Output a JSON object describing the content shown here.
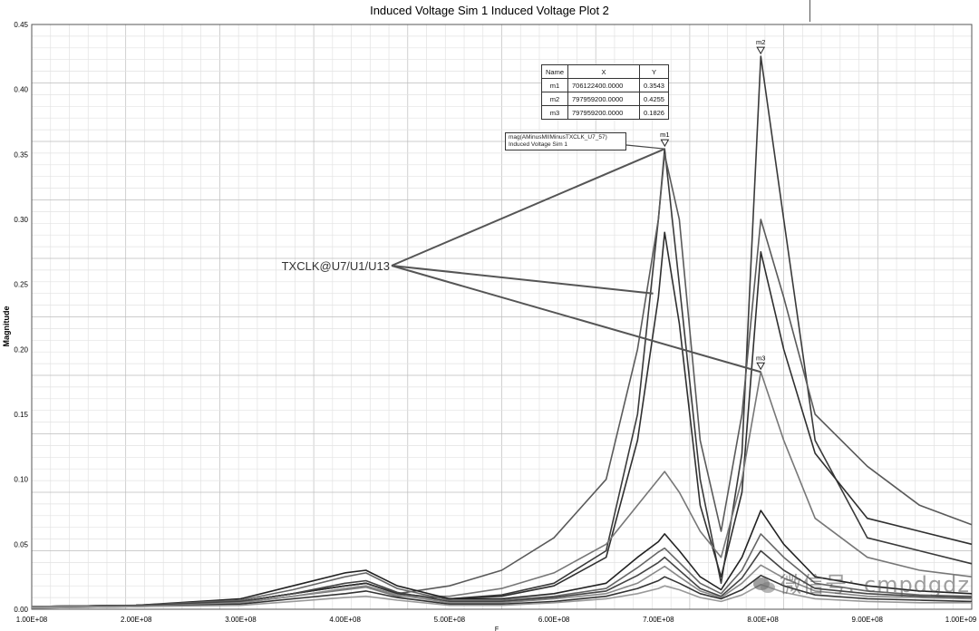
{
  "chart_data": {
    "type": "line",
    "title": "Induced Voltage Sim 1 Induced Voltage Plot 2",
    "xlabel": "F",
    "ylabel": "Magnitude",
    "xlim": [
      100000000,
      1000000000
    ],
    "ylim": [
      0,
      0.45
    ],
    "x_ticks": [
      100000000,
      200000000,
      300000000,
      400000000,
      500000000,
      600000000,
      700000000,
      800000000,
      900000000,
      1000000000
    ],
    "x_tick_labels": [
      "1.00E+08",
      "2.00E+08",
      "3.00E+08",
      "4.00E+08",
      "5.00E+08",
      "6.00E+08",
      "7.00E+08",
      "8.00E+08",
      "9.00E+08",
      "1.00E+09"
    ],
    "y_ticks": [
      0,
      0.05,
      0.1,
      0.15,
      0.2,
      0.25,
      0.3,
      0.35,
      0.4,
      0.45
    ],
    "y_tick_labels": [
      "0.00",
      "0.05",
      "0.10",
      "0.15",
      "0.20",
      "0.25",
      "0.30",
      "0.35",
      "0.40",
      "0.45"
    ],
    "grid": true,
    "x": [
      100000000,
      200000000,
      300000000,
      350000000,
      400000000,
      420000000,
      450000000,
      500000000,
      550000000,
      600000000,
      650000000,
      680000000,
      700000000,
      706000000,
      720000000,
      740000000,
      760000000,
      780000000,
      798000000,
      820000000,
      850000000,
      900000000,
      950000000,
      1000000000
    ],
    "series": [
      {
        "values": [
          0.002,
          0.003,
          0.006,
          0.012,
          0.018,
          0.02,
          0.012,
          0.008,
          0.011,
          0.02,
          0.045,
          0.15,
          0.3,
          0.3543,
          0.25,
          0.1,
          0.02,
          0.12,
          0.4255,
          0.3,
          0.13,
          0.055,
          0.045,
          0.035
        ],
        "color": "#3a3a3a"
      },
      {
        "values": [
          0.002,
          0.003,
          0.006,
          0.012,
          0.018,
          0.02,
          0.012,
          0.018,
          0.03,
          0.055,
          0.1,
          0.2,
          0.3,
          0.35,
          0.3,
          0.13,
          0.06,
          0.15,
          0.3,
          0.24,
          0.15,
          0.11,
          0.08,
          0.065
        ],
        "color": "#5a5a5a"
      },
      {
        "values": [
          0.002,
          0.003,
          0.006,
          0.012,
          0.018,
          0.02,
          0.012,
          0.008,
          0.01,
          0.018,
          0.04,
          0.13,
          0.24,
          0.29,
          0.22,
          0.08,
          0.025,
          0.09,
          0.275,
          0.2,
          0.12,
          0.07,
          0.06,
          0.05
        ],
        "color": "#2f2f2f"
      },
      {
        "values": [
          0.002,
          0.003,
          0.005,
          0.01,
          0.015,
          0.017,
          0.01,
          0.01,
          0.016,
          0.028,
          0.05,
          0.08,
          0.1,
          0.106,
          0.09,
          0.06,
          0.04,
          0.1,
          0.1826,
          0.13,
          0.07,
          0.04,
          0.03,
          0.025
        ],
        "color": "#777777"
      },
      {
        "values": [
          0.002,
          0.003,
          0.008,
          0.018,
          0.028,
          0.03,
          0.018,
          0.008,
          0.008,
          0.012,
          0.02,
          0.04,
          0.052,
          0.058,
          0.045,
          0.025,
          0.015,
          0.04,
          0.076,
          0.05,
          0.025,
          0.018,
          0.014,
          0.012
        ],
        "color": "#222222"
      },
      {
        "values": [
          0.002,
          0.003,
          0.007,
          0.015,
          0.025,
          0.028,
          0.016,
          0.007,
          0.007,
          0.01,
          0.016,
          0.032,
          0.044,
          0.047,
          0.036,
          0.02,
          0.012,
          0.03,
          0.058,
          0.04,
          0.02,
          0.014,
          0.011,
          0.01
        ],
        "color": "#666666"
      },
      {
        "values": [
          0.002,
          0.003,
          0.006,
          0.012,
          0.02,
          0.022,
          0.013,
          0.006,
          0.006,
          0.009,
          0.014,
          0.026,
          0.036,
          0.04,
          0.03,
          0.016,
          0.01,
          0.024,
          0.045,
          0.03,
          0.016,
          0.012,
          0.01,
          0.009
        ],
        "color": "#444444"
      },
      {
        "values": [
          0.002,
          0.002,
          0.005,
          0.01,
          0.016,
          0.018,
          0.011,
          0.005,
          0.005,
          0.008,
          0.012,
          0.02,
          0.03,
          0.033,
          0.025,
          0.014,
          0.009,
          0.02,
          0.034,
          0.024,
          0.014,
          0.01,
          0.009,
          0.008
        ],
        "color": "#888888"
      },
      {
        "values": [
          0.001,
          0.002,
          0.004,
          0.008,
          0.012,
          0.014,
          0.009,
          0.004,
          0.004,
          0.006,
          0.01,
          0.016,
          0.022,
          0.025,
          0.02,
          0.012,
          0.008,
          0.015,
          0.026,
          0.018,
          0.011,
          0.008,
          0.007,
          0.006
        ],
        "color": "#333333"
      },
      {
        "values": [
          0.001,
          0.002,
          0.003,
          0.006,
          0.009,
          0.01,
          0.007,
          0.003,
          0.003,
          0.005,
          0.008,
          0.012,
          0.016,
          0.018,
          0.015,
          0.009,
          0.006,
          0.011,
          0.019,
          0.013,
          0.008,
          0.006,
          0.005,
          0.005
        ],
        "color": "#999999"
      }
    ],
    "markers": [
      {
        "name": "m1",
        "x": 706122400.0,
        "y": 0.3543
      },
      {
        "name": "m2",
        "x": 797959200.0,
        "y": 0.4255
      },
      {
        "name": "m3",
        "x": 797959200.0,
        "y": 0.1826
      }
    ],
    "marker_table": {
      "headers": [
        "Name",
        "X",
        "Y"
      ],
      "rows": [
        [
          "m1",
          "706122400.0000",
          "0.3543"
        ],
        [
          "m2",
          "797959200.0000",
          "0.4255"
        ],
        [
          "m3",
          "797959200.0000",
          "0.1826"
        ]
      ]
    },
    "legend": {
      "line1": "mag(AMinusMIIMinusTXCLK_U7_57)",
      "line2": "Induced Voltage Sim 1"
    },
    "annotation": {
      "text": "TXCLK@U7/U1/U13",
      "targets": [
        {
          "x": 706122400,
          "y": 0.3543
        },
        {
          "x": 695000000,
          "y": 0.243
        },
        {
          "x": 797959200,
          "y": 0.1826
        }
      ]
    }
  },
  "watermark": "微信号: cmpdgdz"
}
